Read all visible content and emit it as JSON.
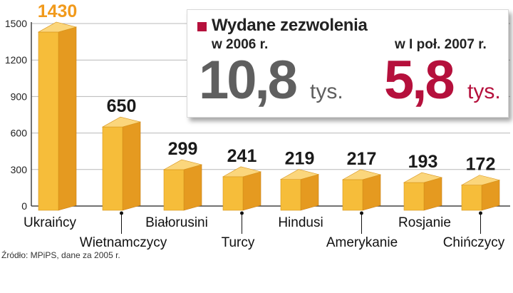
{
  "chart_data": {
    "type": "bar",
    "categories": [
      "Ukraińcy",
      "Wietnamczycy",
      "Białorusini",
      "Turcy",
      "Hindusi",
      "Amerykanie",
      "Rosjanie",
      "Chińczycy"
    ],
    "values": [
      1430,
      650,
      299,
      241,
      219,
      217,
      193,
      172
    ],
    "data_labels": [
      "1430",
      "650",
      "299",
      "241",
      "219",
      "217",
      "193",
      "172"
    ],
    "yticks": [
      0,
      300,
      600,
      900,
      1200,
      1500
    ],
    "ylim": [
      0,
      1500
    ],
    "grid": true,
    "colors": {
      "front": "#f6bd3a",
      "side": "#e59a20",
      "top": "#fbd67c",
      "label_highlight": "#f19a1c",
      "label": "#1a1a1a"
    }
  },
  "info_box": {
    "title": "Wydane zezwolenia",
    "period1_label": "w  2006 r.",
    "period1_value": "10,8",
    "period1_unit": "tys.",
    "period2_label": "w I poł. 2007 r.",
    "period2_value": "5,8",
    "period2_unit": "tys.",
    "accent_color": "#b5103c"
  },
  "source": "Źródło: MPiPS, dane za 2005 r."
}
